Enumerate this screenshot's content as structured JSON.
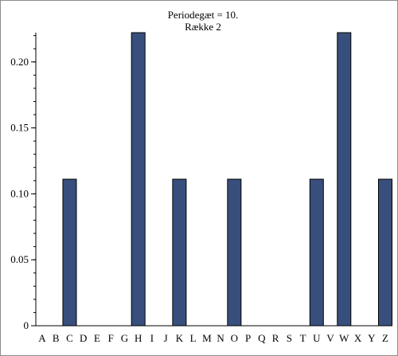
{
  "chart_data": {
    "type": "bar",
    "title": "Periodegæt = 10.",
    "subtitle": "Række 2",
    "xlabel": "",
    "ylabel": "",
    "categories": [
      "A",
      "B",
      "C",
      "D",
      "E",
      "F",
      "G",
      "H",
      "I",
      "J",
      "K",
      "L",
      "M",
      "N",
      "O",
      "P",
      "Q",
      "R",
      "S",
      "T",
      "U",
      "V",
      "W",
      "X",
      "Y",
      "Z"
    ],
    "values": [
      0,
      0,
      0.1111,
      0,
      0,
      0,
      0,
      0.2222,
      0,
      0,
      0.1111,
      0,
      0,
      0,
      0.1111,
      0,
      0,
      0,
      0,
      0,
      0.1111,
      0,
      0.2222,
      0,
      0,
      0.1111
    ],
    "ylim": [
      0,
      0.2222
    ],
    "yticks": [
      0,
      0.05,
      0.1,
      0.15,
      0.2
    ],
    "ytick_labels": [
      "0",
      "0.05",
      "0.10",
      "0.15",
      "0.20"
    ],
    "grid": false,
    "bar_color": "#384f7d",
    "bar_edge_color": "#000000"
  }
}
